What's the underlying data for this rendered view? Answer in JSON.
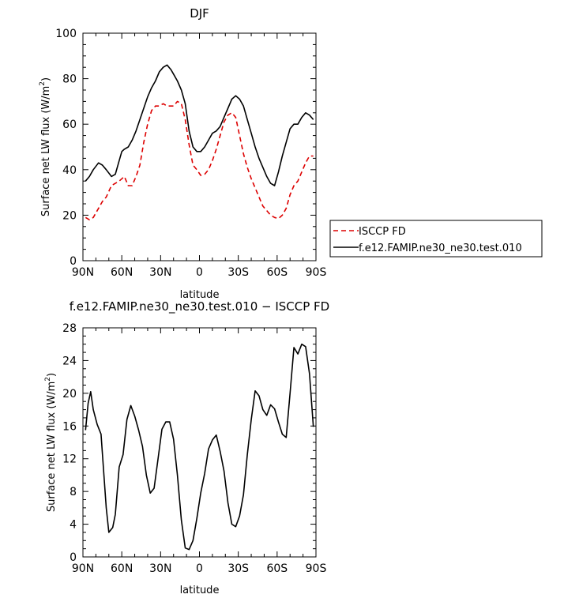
{
  "chart_data": [
    {
      "type": "line",
      "title": "DJF",
      "xlabel": "latitude",
      "ylabel_main": "Surface net LW flux (W/m",
      "ylabel_sup": "2",
      "ylabel_close": ")",
      "xlim": [
        -90,
        90
      ],
      "ylim": [
        0,
        100
      ],
      "xticks": [
        -90,
        -60,
        -30,
        0,
        30,
        60,
        90
      ],
      "xtick_labels": [
        "90N",
        "60N",
        "30N",
        "0",
        "30S",
        "60S",
        "90S"
      ],
      "yticks": [
        0,
        20,
        40,
        60,
        80,
        100
      ],
      "ytick_labels": [
        "0",
        "20",
        "40",
        "60",
        "80",
        "100"
      ],
      "legend_position": "right",
      "series": [
        {
          "name": "ISCCP FD",
          "color": "#dd0000",
          "dash": "dashed",
          "x": [
            -88,
            -85,
            -82,
            -78,
            -75,
            -72,
            -68,
            -65,
            -62,
            -60,
            -58,
            -55,
            -52,
            -49,
            -46,
            -43,
            -40,
            -37,
            -34,
            -31,
            -28,
            -25,
            -22,
            -20,
            -17,
            -14,
            -11,
            -8,
            -5,
            -2,
            1,
            4,
            7,
            10,
            13,
            16,
            19,
            22,
            25,
            28,
            31,
            34,
            37,
            40,
            43,
            46,
            49,
            52,
            55,
            58,
            61,
            64,
            67,
            70,
            73,
            76,
            79,
            82,
            85,
            88
          ],
          "y": [
            19,
            18,
            19,
            23,
            26,
            28,
            33,
            34,
            35,
            36,
            37,
            33,
            33,
            37,
            42,
            52,
            60,
            66,
            68,
            68,
            69,
            68,
            68,
            68,
            70,
            69,
            62,
            51,
            42,
            40,
            37.5,
            38,
            40,
            44,
            49,
            55,
            61,
            64,
            65,
            63,
            55,
            47,
            41,
            36,
            32,
            28,
            24,
            22,
            20,
            19,
            18.5,
            20,
            23,
            29,
            33,
            35,
            39,
            43,
            46,
            46
          ]
        },
        {
          "name": "f.e12.FAMIP.ne30_ne30.test.010",
          "color": "#000000",
          "dash": "solid",
          "x": [
            -88,
            -85,
            -82,
            -78,
            -75,
            -72,
            -68,
            -65,
            -62,
            -60,
            -58,
            -55,
            -52,
            -49,
            -46,
            -43,
            -40,
            -37,
            -34,
            -31,
            -28,
            -25,
            -22,
            -20,
            -17,
            -14,
            -11,
            -8,
            -5,
            -2,
            1,
            4,
            7,
            10,
            13,
            16,
            19,
            22,
            25,
            28,
            31,
            34,
            37,
            40,
            43,
            46,
            49,
            52,
            55,
            58,
            61,
            64,
            67,
            70,
            73,
            76,
            79,
            82,
            85,
            88
          ],
          "y": [
            35,
            37,
            40,
            43,
            42,
            40,
            37,
            38,
            44,
            48,
            49,
            50,
            53,
            57,
            62,
            67,
            72,
            76,
            79,
            83,
            85,
            86,
            84,
            82,
            79,
            75,
            69,
            57,
            50,
            48,
            48,
            50,
            53,
            56,
            57,
            59,
            63,
            67,
            71,
            72.5,
            71,
            68,
            62,
            56,
            50,
            45,
            41,
            37,
            34,
            33,
            39,
            46,
            52,
            58,
            60,
            60,
            63,
            65,
            64,
            62
          ]
        }
      ]
    },
    {
      "type": "line",
      "title": "f.e12.FAMIP.ne30_ne30.test.010 − ISCCP FD",
      "xlabel": "latitude",
      "ylabel_main": "Surface net LW flux (W/m",
      "ylabel_sup": "2",
      "ylabel_close": ")",
      "xlim": [
        -90,
        90
      ],
      "ylim": [
        0,
        28
      ],
      "xticks": [
        -90,
        -60,
        -30,
        0,
        30,
        60,
        90
      ],
      "xtick_labels": [
        "90N",
        "60N",
        "30N",
        "0",
        "30S",
        "60S",
        "90S"
      ],
      "yticks": [
        0,
        4,
        8,
        12,
        16,
        20,
        24,
        28
      ],
      "ytick_labels": [
        "0",
        "4",
        "8",
        "12",
        "16",
        "20",
        "24",
        "28"
      ],
      "series": [
        {
          "color": "#000000",
          "dash": "solid",
          "x": [
            -88,
            -86,
            -84,
            -82,
            -79,
            -76,
            -74,
            -72,
            -70,
            -67,
            -65,
            -62,
            -59,
            -56,
            -53,
            -50,
            -47,
            -44,
            -41,
            -38,
            -35,
            -32,
            -29,
            -26,
            -23,
            -20,
            -17,
            -14,
            -11,
            -8,
            -5,
            -2,
            1,
            4,
            7,
            10,
            13,
            16,
            19,
            22,
            25,
            28,
            31,
            34,
            37,
            40,
            43,
            46,
            49,
            52,
            55,
            58,
            61,
            64,
            67,
            70,
            73,
            76,
            79,
            82,
            85,
            88
          ],
          "y": [
            15.5,
            18.8,
            20.2,
            18,
            16.2,
            15,
            10.5,
            6,
            3,
            3.6,
            5.2,
            11,
            12.5,
            16.8,
            18.5,
            17.2,
            15.5,
            13.5,
            10,
            7.8,
            8.4,
            12,
            15.6,
            16.5,
            16.5,
            14.4,
            10,
            4.5,
            1.1,
            0.9,
            2,
            4.7,
            7.8,
            10.2,
            13.2,
            14.3,
            14.9,
            12.9,
            10.5,
            6.6,
            4,
            3.7,
            5,
            7.6,
            12.5,
            16.8,
            20.3,
            19.7,
            18,
            17.3,
            18.6,
            18.1,
            16.5,
            15,
            14.6,
            20,
            25.6,
            24.8,
            26,
            25.7,
            22.4,
            15.9
          ]
        }
      ]
    }
  ]
}
